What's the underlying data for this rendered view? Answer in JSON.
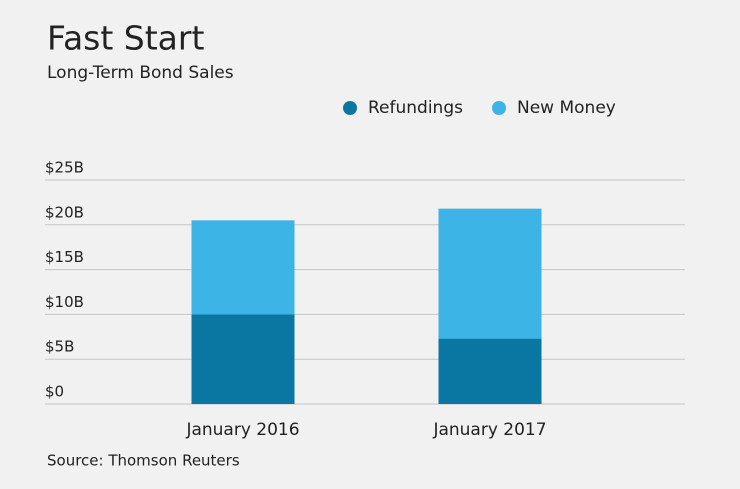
{
  "chart_data": {
    "type": "stacked-bar",
    "title": "Fast Start",
    "subtitle": "Long-Term Bond Sales",
    "categories": [
      "January 2016",
      "January 2017"
    ],
    "series": [
      {
        "name": "Refundings",
        "color": "#0a77a3",
        "values": [
          10.0,
          7.3
        ]
      },
      {
        "name": "New Money",
        "color": "#3cb4e5",
        "values": [
          10.5,
          14.5
        ]
      }
    ],
    "ylim": [
      0,
      25
    ],
    "yticks": [
      {
        "value": 0,
        "label": "$0"
      },
      {
        "value": 5,
        "label": "$5B"
      },
      {
        "value": 10,
        "label": "$10B"
      },
      {
        "value": 15,
        "label": "$15B"
      },
      {
        "value": 20,
        "label": "$20B"
      },
      {
        "value": 25,
        "label": "$25B"
      }
    ],
    "grid": true,
    "source": "Source: Thomson Reuters"
  }
}
